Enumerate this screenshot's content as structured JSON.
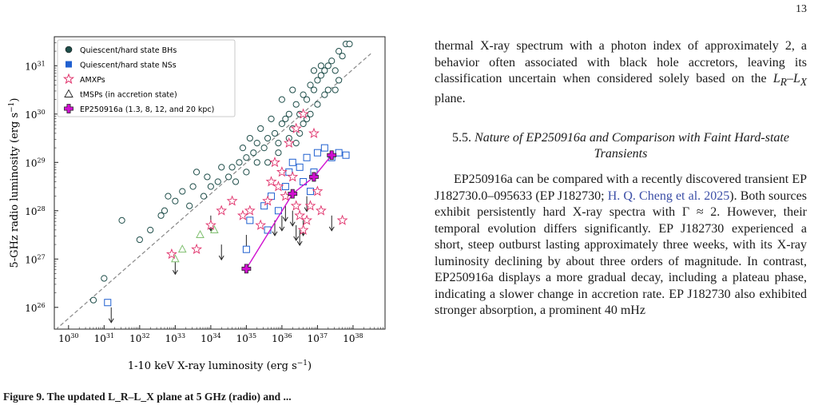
{
  "page_number": "13",
  "caption_fragment": "Figure 9. The updated L_R–L_X plane at 5 GHz (radio) and ...",
  "right_column": {
    "para1_before": "thermal X-ray spectrum with a photon index of approximately 2, a behavior often associated with black hole accretors, leaving its classification uncertain when considered solely based on the ",
    "para1_math": "L",
    "para1_after": " plane.",
    "section_number": "5.5.",
    "section_title": "Nature of EP250916a and Comparison with Faint Hard-state Transients",
    "para2_before": "EP250916a can be compared with a recently discovered transient EP J182730.0–095633 (EP J182730; ",
    "para2_link": "H. Q. Cheng et al. 2025",
    "para2_after": "). Both sources exhibit persistently hard X-ray spectra with Γ ≈ 2. However, their temporal evolution differs significantly. EP J182730 experienced a short, steep outburst lasting approximately three weeks, with its X-ray luminosity declining by about three orders of magnitude. In contrast, EP250916a displays a more gradual decay, including a plateau phase, indicating a slower change in accretion rate. EP J182730 also exhibited stronger absorption, a prominent 40 mHz"
  },
  "chart_data": {
    "type": "scatter",
    "xscale": "log",
    "yscale": "log",
    "xlim_exp": [
      29.6,
      38.9
    ],
    "ylim_exp": [
      25.55,
      31.6
    ],
    "xticks": [
      "10^30",
      "10^31",
      "10^32",
      "10^33",
      "10^34",
      "10^35",
      "10^36",
      "10^37",
      "10^38"
    ],
    "xtick_exps": [
      30,
      31,
      32,
      33,
      34,
      35,
      36,
      37,
      38
    ],
    "yticks": [
      "10^26",
      "10^27",
      "10^28",
      "10^29",
      "10^30",
      "10^31"
    ],
    "ytick_exps": [
      26,
      27,
      28,
      29,
      30,
      31
    ],
    "xlabel_main": "1-10 keV X-ray luminosity (erg s",
    "xlabel_sup": "−1",
    "xlabel_end": ")",
    "ylabel_main": "5-GHz radio luminosity (erg s",
    "ylabel_sup": "−1",
    "ylabel_end": ")",
    "legend_position": "top-left",
    "legend": [
      {
        "label": "Quiescent/hard state BHs",
        "marker": "circle",
        "color": "#1f4e4a"
      },
      {
        "label": "Quiescent/hard state NSs",
        "marker": "square",
        "color": "#2060d0"
      },
      {
        "label": "AMXPs",
        "marker": "star",
        "color": "#e0306a"
      },
      {
        "label": "tMSPs (in accretion state)",
        "marker": "triangle",
        "color": "#7fbf6f"
      },
      {
        "label": "EP250916a (1.3, 8, 12, and 20 kpc)",
        "marker": "plus",
        "color": "#d010d0"
      }
    ],
    "reference_line": {
      "x_exp": [
        29.5,
        38.5
      ],
      "y_exp": [
        25.45,
        31.25
      ]
    },
    "bh_points": [
      [
        30.7,
        26.15
      ],
      [
        31.0,
        26.6
      ],
      [
        31.5,
        27.8
      ],
      [
        32.0,
        27.4
      ],
      [
        32.3,
        27.6
      ],
      [
        32.6,
        27.9
      ],
      [
        33.0,
        28.2
      ],
      [
        33.2,
        28.4
      ],
      [
        33.5,
        28.5
      ],
      [
        33.8,
        28.3
      ],
      [
        34.0,
        28.5
      ],
      [
        34.2,
        28.6
      ],
      [
        34.5,
        28.7
      ],
      [
        34.6,
        28.9
      ],
      [
        34.8,
        29.0
      ],
      [
        35.0,
        29.1
      ],
      [
        35.2,
        29.2
      ],
      [
        35.3,
        29.0
      ],
      [
        35.5,
        29.3
      ],
      [
        35.6,
        29.5
      ],
      [
        35.8,
        29.6
      ],
      [
        35.9,
        29.4
      ],
      [
        36.0,
        29.8
      ],
      [
        36.1,
        29.9
      ],
      [
        36.2,
        30.0
      ],
      [
        36.3,
        29.7
      ],
      [
        36.4,
        30.2
      ],
      [
        36.5,
        30.0
      ],
      [
        36.6,
        30.4
      ],
      [
        36.7,
        30.3
      ],
      [
        36.8,
        30.6
      ],
      [
        36.9,
        30.5
      ],
      [
        37.0,
        30.7
      ],
      [
        37.1,
        30.8
      ],
      [
        37.2,
        30.9
      ],
      [
        37.3,
        31.0
      ],
      [
        37.4,
        31.1
      ],
      [
        37.5,
        30.9
      ],
      [
        37.6,
        31.3
      ],
      [
        37.7,
        31.2
      ],
      [
        37.8,
        31.45
      ],
      [
        37.9,
        31.45
      ],
      [
        36.3,
        30.5
      ],
      [
        36.0,
        30.3
      ],
      [
        35.7,
        29.9
      ],
      [
        35.4,
        29.7
      ],
      [
        35.1,
        29.5
      ],
      [
        34.9,
        29.3
      ],
      [
        34.3,
        28.9
      ],
      [
        33.9,
        28.7
      ],
      [
        33.6,
        28.8
      ],
      [
        32.8,
        28.3
      ],
      [
        36.8,
        30.0
      ],
      [
        37.0,
        30.2
      ],
      [
        37.3,
        30.5
      ],
      [
        36.6,
        29.8
      ],
      [
        35.9,
        29.2
      ],
      [
        35.6,
        29.0
      ],
      [
        36.2,
        29.5
      ],
      [
        36.5,
        29.6
      ],
      [
        37.5,
        30.5
      ],
      [
        37.6,
        30.7
      ],
      [
        37.2,
        30.4
      ],
      [
        34.7,
        28.6
      ],
      [
        33.4,
        28.1
      ],
      [
        32.7,
        28.0
      ],
      [
        35.0,
        28.8
      ],
      [
        35.3,
        29.4
      ],
      [
        36.9,
        30.9
      ],
      [
        37.1,
        31.0
      ],
      [
        36.4,
        29.4
      ],
      [
        36.7,
        29.9
      ]
    ],
    "ns_points": [
      [
        31.1,
        26.1
      ],
      [
        35.0,
        27.2
      ],
      [
        35.1,
        27.8
      ],
      [
        35.5,
        28.1
      ],
      [
        35.7,
        28.3
      ],
      [
        35.9,
        28.0
      ],
      [
        36.1,
        28.5
      ],
      [
        36.2,
        28.8
      ],
      [
        36.3,
        29.0
      ],
      [
        36.5,
        28.9
      ],
      [
        36.7,
        29.1
      ],
      [
        36.9,
        28.8
      ],
      [
        37.0,
        29.2
      ],
      [
        37.2,
        29.3
      ],
      [
        37.4,
        29.1
      ],
      [
        37.6,
        29.2
      ],
      [
        37.8,
        29.15
      ],
      [
        36.6,
        28.6
      ],
      [
        36.8,
        28.4
      ],
      [
        35.6,
        27.6
      ]
    ],
    "amxp_points": [
      [
        32.9,
        27.1
      ],
      [
        33.6,
        27.2
      ],
      [
        34.0,
        27.7
      ],
      [
        34.3,
        28.0
      ],
      [
        34.6,
        28.2
      ],
      [
        34.9,
        27.9
      ],
      [
        35.1,
        28.0
      ],
      [
        35.4,
        27.7
      ],
      [
        35.6,
        28.2
      ],
      [
        35.7,
        28.6
      ],
      [
        35.9,
        28.5
      ],
      [
        36.0,
        28.8
      ],
      [
        36.1,
        28.3
      ],
      [
        36.3,
        28.7
      ],
      [
        36.4,
        28.1
      ],
      [
        36.5,
        27.9
      ],
      [
        36.6,
        27.6
      ],
      [
        36.7,
        27.8
      ],
      [
        36.8,
        28.1
      ],
      [
        37.0,
        28.4
      ],
      [
        37.1,
        28.0
      ],
      [
        37.7,
        27.8
      ],
      [
        35.8,
        29.0
      ],
      [
        36.2,
        29.4
      ],
      [
        36.4,
        29.7
      ],
      [
        36.6,
        30.0
      ],
      [
        36.9,
        29.6
      ]
    ],
    "tmsp_points": [
      [
        33.0,
        27.0
      ],
      [
        33.2,
        27.2
      ],
      [
        33.7,
        27.5
      ],
      [
        34.1,
        27.6
      ]
    ],
    "ep_points": [
      [
        35.0,
        26.8
      ],
      [
        36.3,
        28.35
      ],
      [
        36.9,
        28.7
      ],
      [
        37.4,
        29.15
      ]
    ],
    "upper_limits": [
      [
        31.2,
        26.0
      ],
      [
        33.0,
        27.0
      ],
      [
        34.0,
        27.9
      ],
      [
        34.3,
        27.3
      ],
      [
        35.0,
        27.5
      ],
      [
        35.8,
        27.8
      ],
      [
        36.0,
        27.9
      ],
      [
        36.1,
        28.1
      ],
      [
        36.3,
        28.0
      ],
      [
        36.4,
        27.7
      ],
      [
        36.5,
        27.6
      ],
      [
        36.6,
        27.8
      ],
      [
        36.7,
        28.3
      ],
      [
        37.4,
        27.9
      ]
    ]
  }
}
